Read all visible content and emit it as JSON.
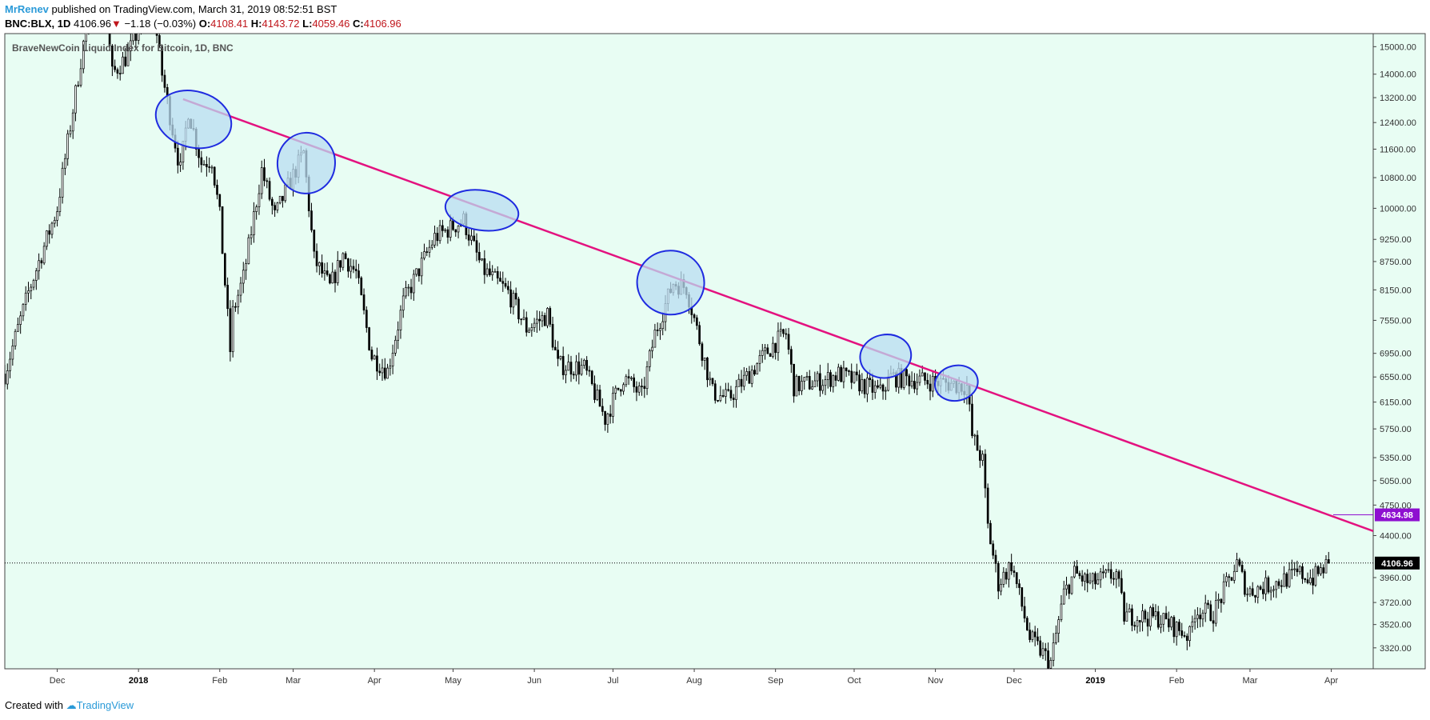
{
  "header": {
    "author": "MrRenev",
    "published": "published on TradingView.com, March 31, 2019 08:52:51 BST"
  },
  "quote": {
    "symbol": "BNC:BLX, 1D",
    "last": "4106.96",
    "arrow": "▼",
    "change": "−1.18 (−0.03%)",
    "open_label": "O:",
    "open": "4108.41",
    "high_label": "H:",
    "high": "4143.72",
    "low_label": "L:",
    "low": "4059.46",
    "close_label": "C:",
    "close": "4106.96"
  },
  "footer": {
    "created_with": "Created with",
    "brand": "TradingView"
  },
  "colors": {
    "background": "#e8fdf3",
    "trendline": "#e3127f",
    "ellipse_stroke": "#1f2be0",
    "ellipse_fill": "#b9dcf2",
    "trend_tag": "#8e0fd0",
    "price_tag": "#000000"
  },
  "chart_data": {
    "type": "candlestick",
    "title": "BraveNewCoin Liquid Index for Bitcoin, 1D, BNC",
    "y_ticks": [
      15000,
      14000,
      13200,
      12400,
      11600,
      10800,
      10000,
      9250,
      8750,
      8150,
      7550,
      6950,
      6550,
      6150,
      5750,
      5350,
      5050,
      4750,
      4400,
      3960,
      3720,
      3520,
      3320
    ],
    "y_tick_labels": [
      "15000.00",
      "14000.00",
      "13200.00",
      "12400.00",
      "11600.00",
      "10800.00",
      "10000.00",
      "9250.00",
      "8750.00",
      "8150.00",
      "7550.00",
      "6950.00",
      "6550.00",
      "6150.00",
      "5750.00",
      "5350.00",
      "5050.00",
      "4750.00",
      "4400.00",
      "3960.00",
      "3720.00",
      "3520.00",
      "3320.00"
    ],
    "x_ticks": [
      {
        "label": "Dec",
        "date": "2017-12-01"
      },
      {
        "label": "2018",
        "date": "2018-01-01",
        "bold": true
      },
      {
        "label": "Feb",
        "date": "2018-02-01"
      },
      {
        "label": "Mar",
        "date": "2018-03-01"
      },
      {
        "label": "Apr",
        "date": "2018-04-01"
      },
      {
        "label": "May",
        "date": "2018-05-01"
      },
      {
        "label": "Jun",
        "date": "2018-06-01"
      },
      {
        "label": "Jul",
        "date": "2018-07-01"
      },
      {
        "label": "Aug",
        "date": "2018-08-01"
      },
      {
        "label": "Sep",
        "date": "2018-09-01"
      },
      {
        "label": "Oct",
        "date": "2018-10-01"
      },
      {
        "label": "Nov",
        "date": "2018-11-01"
      },
      {
        "label": "Dec",
        "date": "2018-12-01"
      },
      {
        "label": "2019",
        "date": "2019-01-01",
        "bold": true
      },
      {
        "label": "Feb",
        "date": "2019-02-01"
      },
      {
        "label": "Mar",
        "date": "2019-03-01"
      },
      {
        "label": "Apr",
        "date": "2019-04-01"
      }
    ],
    "x_range": [
      "2017-11-11",
      "2019-04-17"
    ],
    "y_range": [
      3150,
      15500
    ],
    "grid": false,
    "price_anchors": [
      {
        "date": "2017-11-11",
        "close": 6600
      },
      {
        "date": "2017-11-20",
        "close": 8100
      },
      {
        "date": "2017-12-01",
        "close": 10000
      },
      {
        "date": "2017-12-10",
        "close": 14500
      },
      {
        "date": "2017-12-17",
        "close": 19300
      },
      {
        "date": "2017-12-22",
        "close": 14000
      },
      {
        "date": "2017-12-28",
        "close": 14700
      },
      {
        "date": "2018-01-06",
        "close": 17000
      },
      {
        "date": "2018-01-10",
        "close": 14000
      },
      {
        "date": "2018-01-17",
        "close": 11000
      },
      {
        "date": "2018-01-20",
        "close": 12800
      },
      {
        "date": "2018-01-25",
        "close": 11200
      },
      {
        "date": "2018-01-29",
        "close": 11300
      },
      {
        "date": "2018-02-01",
        "close": 9800
      },
      {
        "date": "2018-02-05",
        "close": 7000
      },
      {
        "date": "2018-02-06",
        "close": 7700
      },
      {
        "date": "2018-02-10",
        "close": 8400
      },
      {
        "date": "2018-02-17",
        "close": 11000
      },
      {
        "date": "2018-02-22",
        "close": 9800
      },
      {
        "date": "2018-02-26",
        "close": 10400
      },
      {
        "date": "2018-03-05",
        "close": 11500
      },
      {
        "date": "2018-03-09",
        "close": 8800
      },
      {
        "date": "2018-03-15",
        "close": 8200
      },
      {
        "date": "2018-03-20",
        "close": 8900
      },
      {
        "date": "2018-03-25",
        "close": 8500
      },
      {
        "date": "2018-03-31",
        "close": 6900
      },
      {
        "date": "2018-04-06",
        "close": 6650
      },
      {
        "date": "2018-04-12",
        "close": 7900
      },
      {
        "date": "2018-04-24",
        "close": 9300
      },
      {
        "date": "2018-05-05",
        "close": 9700
      },
      {
        "date": "2018-05-12",
        "close": 8600
      },
      {
        "date": "2018-05-22",
        "close": 8100
      },
      {
        "date": "2018-05-29",
        "close": 7400
      },
      {
        "date": "2018-06-06",
        "close": 7650
      },
      {
        "date": "2018-06-10",
        "close": 6750
      },
      {
        "date": "2018-06-20",
        "close": 6700
      },
      {
        "date": "2018-06-28",
        "close": 5900
      },
      {
        "date": "2018-07-05",
        "close": 6550
      },
      {
        "date": "2018-07-12",
        "close": 6250
      },
      {
        "date": "2018-07-17",
        "close": 7300
      },
      {
        "date": "2018-07-24",
        "close": 8300
      },
      {
        "date": "2018-07-29",
        "close": 8200
      },
      {
        "date": "2018-08-08",
        "close": 6300
      },
      {
        "date": "2018-08-14",
        "close": 6200
      },
      {
        "date": "2018-08-20",
        "close": 6500
      },
      {
        "date": "2018-08-31",
        "close": 7100
      },
      {
        "date": "2018-09-05",
        "close": 7300
      },
      {
        "date": "2018-09-08",
        "close": 6400
      },
      {
        "date": "2018-09-20",
        "close": 6500
      },
      {
        "date": "2018-09-25",
        "close": 6600
      },
      {
        "date": "2018-10-11",
        "close": 6300
      },
      {
        "date": "2018-10-15",
        "close": 6550
      },
      {
        "date": "2018-11-05",
        "close": 6450
      },
      {
        "date": "2018-11-13",
        "close": 6400
      },
      {
        "date": "2018-11-15",
        "close": 5650
      },
      {
        "date": "2018-11-19",
        "close": 5300
      },
      {
        "date": "2018-11-21",
        "close": 4500
      },
      {
        "date": "2018-11-25",
        "close": 3900
      },
      {
        "date": "2018-11-30",
        "close": 4100
      },
      {
        "date": "2018-12-07",
        "close": 3400
      },
      {
        "date": "2018-12-15",
        "close": 3200
      },
      {
        "date": "2018-12-20",
        "close": 3800
      },
      {
        "date": "2018-12-24",
        "close": 4000
      },
      {
        "date": "2018-12-30",
        "close": 3900
      },
      {
        "date": "2019-01-09",
        "close": 4000
      },
      {
        "date": "2019-01-12",
        "close": 3600
      },
      {
        "date": "2019-01-25",
        "close": 3580
      },
      {
        "date": "2019-02-06",
        "close": 3420
      },
      {
        "date": "2019-02-08",
        "close": 3650
      },
      {
        "date": "2019-02-15",
        "close": 3620
      },
      {
        "date": "2019-02-24",
        "close": 4100
      },
      {
        "date": "2019-02-28",
        "close": 3820
      },
      {
        "date": "2019-03-10",
        "close": 3900
      },
      {
        "date": "2019-03-20",
        "close": 4000
      },
      {
        "date": "2019-03-25",
        "close": 3950
      },
      {
        "date": "2019-03-31",
        "close": 4107
      }
    ],
    "trendline": {
      "start": {
        "date": "2018-01-18",
        "value": 13150
      },
      "end": {
        "date": "2019-04-17",
        "value": 4450
      }
    },
    "ellipses": [
      {
        "date": "2018-01-22",
        "value": 12500
      },
      {
        "date": "2018-03-06",
        "value": 11200
      },
      {
        "date": "2018-05-12",
        "value": 9950
      },
      {
        "date": "2018-07-23",
        "value": 8300
      },
      {
        "date": "2018-10-13",
        "value": 6900
      },
      {
        "date": "2018-11-09",
        "value": 6450
      }
    ],
    "last_price": 4106.96,
    "last_price_label": "4106.96",
    "trend_value_label": "4634.98",
    "trend_value": 4634.98
  }
}
